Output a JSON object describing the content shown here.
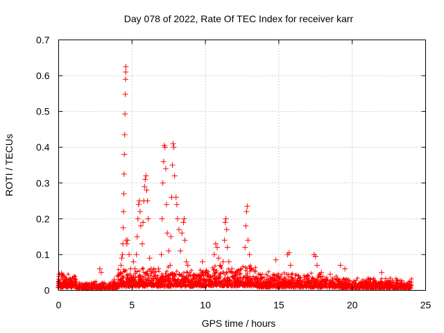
{
  "chart_data": {
    "type": "scatter",
    "title": "Day 078 of 2022, Rate Of TEC Index for receiver karr",
    "xlabel": "GPS time / hours",
    "ylabel": "ROTI / TECUs",
    "xlim": [
      0,
      25
    ],
    "ylim": [
      0,
      0.7
    ],
    "x_ticks": [
      0,
      5,
      10,
      15,
      20,
      25
    ],
    "y_ticks": [
      0,
      0.1,
      0.2,
      0.3,
      0.4,
      0.5,
      0.6,
      0.7
    ],
    "grid": true,
    "marker": "+",
    "color": "#ff0000",
    "series": [
      {
        "points": [
          [
            0.05,
            0.045
          ],
          [
            0.1,
            0.02
          ],
          [
            0.2,
            0.048
          ],
          [
            0.3,
            0.03
          ],
          [
            0.45,
            0.028
          ],
          [
            0.6,
            0.022
          ],
          [
            0.9,
            0.02
          ],
          [
            1.1,
            0.025
          ],
          [
            2.8,
            0.06
          ],
          [
            2.9,
            0.05
          ],
          [
            3.8,
            0.03
          ],
          [
            4.0,
            0.04
          ],
          [
            4.2,
            0.05
          ],
          [
            4.25,
            0.07
          ],
          [
            4.3,
            0.09
          ],
          [
            4.35,
            0.1
          ],
          [
            4.38,
            0.13
          ],
          [
            4.4,
            0.175
          ],
          [
            4.42,
            0.22
          ],
          [
            4.44,
            0.27
          ],
          [
            4.46,
            0.325
          ],
          [
            4.48,
            0.38
          ],
          [
            4.5,
            0.435
          ],
          [
            4.52,
            0.493
          ],
          [
            4.54,
            0.548
          ],
          [
            4.56,
            0.59
          ],
          [
            4.57,
            0.61
          ],
          [
            4.58,
            0.625
          ],
          [
            4.6,
            0.14
          ],
          [
            4.65,
            0.13
          ],
          [
            4.7,
            0.14
          ],
          [
            4.8,
            0.1
          ],
          [
            4.9,
            0.06
          ],
          [
            5.1,
            0.08
          ],
          [
            5.2,
            0.06
          ],
          [
            5.3,
            0.1
          ],
          [
            5.35,
            0.15
          ],
          [
            5.4,
            0.2
          ],
          [
            5.45,
            0.24
          ],
          [
            5.5,
            0.25
          ],
          [
            5.55,
            0.22
          ],
          [
            5.6,
            0.18
          ],
          [
            5.7,
            0.13
          ],
          [
            5.75,
            0.19
          ],
          [
            5.8,
            0.25
          ],
          [
            5.85,
            0.29
          ],
          [
            5.9,
            0.31
          ],
          [
            5.95,
            0.32
          ],
          [
            6.0,
            0.28
          ],
          [
            6.05,
            0.25
          ],
          [
            6.1,
            0.2
          ],
          [
            6.2,
            0.09
          ],
          [
            6.3,
            0.06
          ],
          [
            6.5,
            0.05
          ],
          [
            6.8,
            0.06
          ],
          [
            7.0,
            0.1
          ],
          [
            7.05,
            0.2
          ],
          [
            7.1,
            0.3
          ],
          [
            7.15,
            0.36
          ],
          [
            7.2,
            0.405
          ],
          [
            7.25,
            0.4
          ],
          [
            7.3,
            0.34
          ],
          [
            7.35,
            0.24
          ],
          [
            7.4,
            0.16
          ],
          [
            7.5,
            0.11
          ],
          [
            7.6,
            0.07
          ],
          [
            7.65,
            0.15
          ],
          [
            7.7,
            0.26
          ],
          [
            7.75,
            0.35
          ],
          [
            7.8,
            0.41
          ],
          [
            7.85,
            0.4
          ],
          [
            7.9,
            0.32
          ],
          [
            8.0,
            0.26
          ],
          [
            8.05,
            0.24
          ],
          [
            8.1,
            0.2
          ],
          [
            8.2,
            0.17
          ],
          [
            8.3,
            0.11
          ],
          [
            8.4,
            0.16
          ],
          [
            8.5,
            0.19
          ],
          [
            8.55,
            0.2
          ],
          [
            8.6,
            0.14
          ],
          [
            8.7,
            0.08
          ],
          [
            8.8,
            0.07
          ],
          [
            9.0,
            0.04
          ],
          [
            9.8,
            0.08
          ],
          [
            10.0,
            0.05
          ],
          [
            10.6,
            0.1
          ],
          [
            10.7,
            0.13
          ],
          [
            10.8,
            0.12
          ],
          [
            10.9,
            0.09
          ],
          [
            11.0,
            0.07
          ],
          [
            11.2,
            0.08
          ],
          [
            11.3,
            0.14
          ],
          [
            11.35,
            0.19
          ],
          [
            11.4,
            0.2
          ],
          [
            11.45,
            0.17
          ],
          [
            11.5,
            0.12
          ],
          [
            11.6,
            0.08
          ],
          [
            11.8,
            0.06
          ],
          [
            12.2,
            0.05
          ],
          [
            12.7,
            0.12
          ],
          [
            12.75,
            0.18
          ],
          [
            12.8,
            0.22
          ],
          [
            12.85,
            0.235
          ],
          [
            12.9,
            0.14
          ],
          [
            13.0,
            0.1
          ],
          [
            13.1,
            0.06
          ],
          [
            14.8,
            0.085
          ],
          [
            15.6,
            0.1
          ],
          [
            15.7,
            0.105
          ],
          [
            15.8,
            0.07
          ],
          [
            17.4,
            0.1
          ],
          [
            17.5,
            0.095
          ],
          [
            17.6,
            0.07
          ],
          [
            17.9,
            0.05
          ],
          [
            18.5,
            0.045
          ],
          [
            19.2,
            0.07
          ],
          [
            19.5,
            0.06
          ],
          [
            22.0,
            0.05
          ]
        ]
      }
    ]
  }
}
